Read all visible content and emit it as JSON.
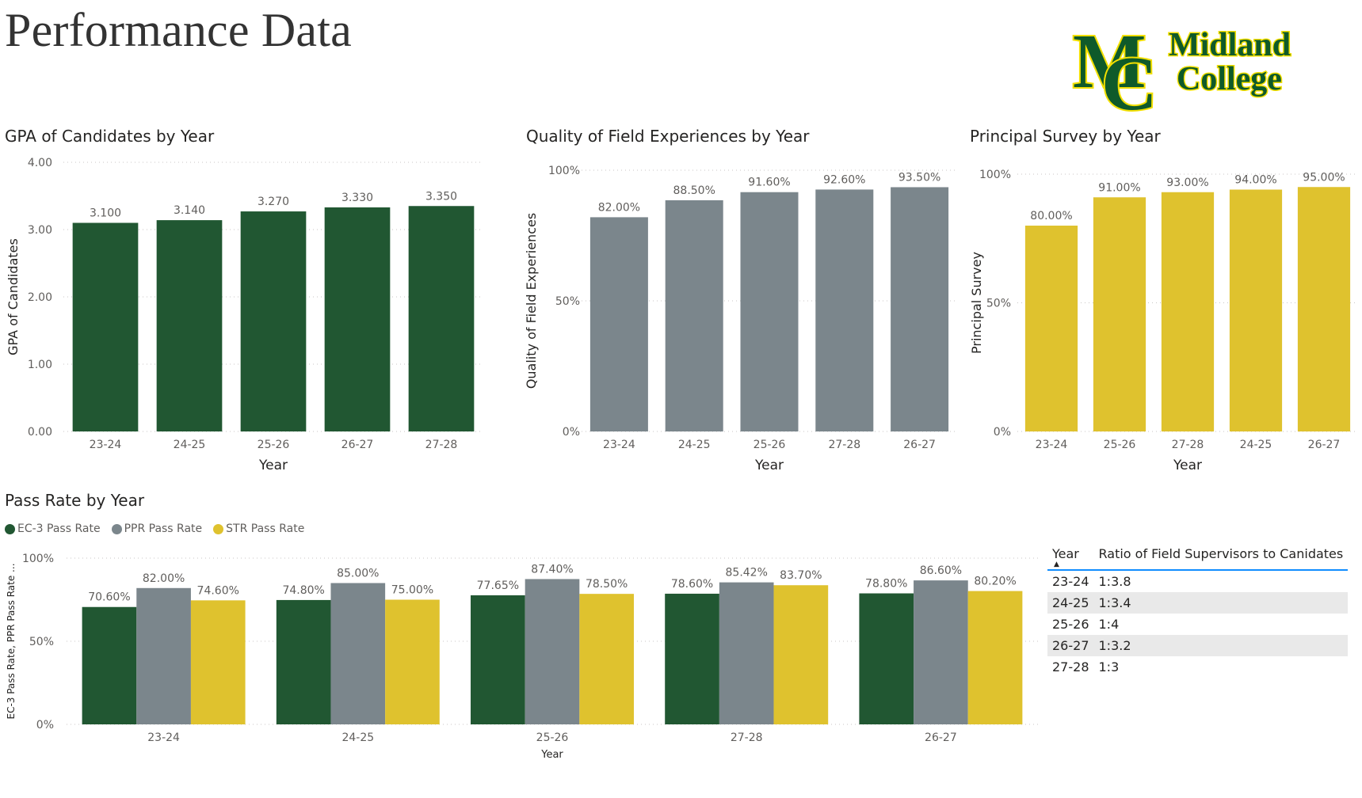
{
  "page": {
    "title": "Performance Data"
  },
  "logo": {
    "monogram_m": "M",
    "monogram_c": "C",
    "line1": "Midland",
    "line2": "College",
    "colors": {
      "green": "#0f5a2a",
      "gold": "#f2df00"
    }
  },
  "colors": {
    "green": "#215732",
    "gray": "#7b868c",
    "gold": "#dfc22e",
    "grid": "#c8c6c4",
    "table_accent": "#118dff"
  },
  "chart_data": [
    {
      "id": "gpa",
      "type": "bar",
      "title": "GPA of Candidates by Year",
      "xlabel": "Year",
      "ylabel": "GPA of Candidates",
      "categories": [
        "23-24",
        "24-25",
        "25-26",
        "26-27",
        "27-28"
      ],
      "values": [
        3.1,
        3.14,
        3.27,
        3.33,
        3.35
      ],
      "data_labels": [
        "3.100",
        "3.140",
        "3.270",
        "3.330",
        "3.350"
      ],
      "ylim": [
        0,
        4
      ],
      "yticks": [
        0,
        1,
        2,
        3,
        4
      ],
      "ytick_labels": [
        "0.00",
        "1.00",
        "2.00",
        "3.00",
        "4.00"
      ],
      "grid": true,
      "color": "#215732"
    },
    {
      "id": "field",
      "type": "bar",
      "title": "Quality of Field Experiences by Year",
      "xlabel": "Year",
      "ylabel": "Quality of Field Experiences",
      "categories": [
        "23-24",
        "24-25",
        "25-26",
        "27-28",
        "26-27"
      ],
      "values": [
        82.0,
        88.5,
        91.6,
        92.6,
        93.5
      ],
      "data_labels": [
        "82.00%",
        "88.50%",
        "91.60%",
        "92.60%",
        "93.50%"
      ],
      "ylim": [
        0,
        100
      ],
      "yticks": [
        0,
        50,
        100
      ],
      "ytick_labels": [
        "0%",
        "50%",
        "100%"
      ],
      "grid": true,
      "color": "#7b868c"
    },
    {
      "id": "principal",
      "type": "bar",
      "title": "Principal Survey by Year",
      "xlabel": "Year",
      "ylabel": "Principal Survey",
      "categories": [
        "23-24",
        "25-26",
        "27-28",
        "24-25",
        "26-27"
      ],
      "values": [
        80.0,
        91.0,
        93.0,
        94.0,
        95.0
      ],
      "data_labels": [
        "80.00%",
        "91.00%",
        "93.00%",
        "94.00%",
        "95.00%"
      ],
      "ylim": [
        0,
        100
      ],
      "yticks": [
        0,
        50,
        100
      ],
      "ytick_labels": [
        "0%",
        "50%",
        "100%"
      ],
      "grid": true,
      "color": "#dfc22e"
    },
    {
      "id": "pass",
      "type": "bar",
      "title": "Pass Rate by Year",
      "xlabel": "Year",
      "ylabel": "EC-3 Pass Rate, PPR Pass Rate ...",
      "categories": [
        "23-24",
        "24-25",
        "25-26",
        "27-28",
        "26-27"
      ],
      "series": [
        {
          "name": "EC-3 Pass Rate",
          "color": "#215732",
          "values": [
            70.6,
            74.8,
            77.65,
            78.6,
            78.8
          ],
          "data_labels": [
            "70.60%",
            "74.80%",
            "77.65%",
            "78.60%",
            "78.80%"
          ]
        },
        {
          "name": "PPR Pass Rate",
          "color": "#7b868c",
          "values": [
            82.0,
            85.0,
            87.4,
            85.42,
            86.6
          ],
          "data_labels": [
            "82.00%",
            "85.00%",
            "87.40%",
            "85.42%",
            "86.60%"
          ]
        },
        {
          "name": "STR Pass Rate",
          "color": "#dfc22e",
          "values": [
            74.6,
            75.0,
            78.5,
            83.7,
            80.2
          ],
          "data_labels": [
            "74.60%",
            "75.00%",
            "78.50%",
            "83.70%",
            "80.20%"
          ]
        }
      ],
      "ylim": [
        0,
        100
      ],
      "yticks": [
        0,
        50,
        100
      ],
      "ytick_labels": [
        "0%",
        "50%",
        "100%"
      ],
      "grid": true,
      "legend": "top-left"
    },
    {
      "id": "ratio",
      "type": "table",
      "columns": [
        "Year",
        "Ratio of Field Supervisors to Canidates"
      ],
      "sort": "Year ascending",
      "rows": [
        [
          "23-24",
          "1:3.8"
        ],
        [
          "24-25",
          "1:3.4"
        ],
        [
          "25-26",
          "1:4"
        ],
        [
          "26-27",
          "1:3.2"
        ],
        [
          "27-28",
          "1:3"
        ]
      ]
    }
  ]
}
